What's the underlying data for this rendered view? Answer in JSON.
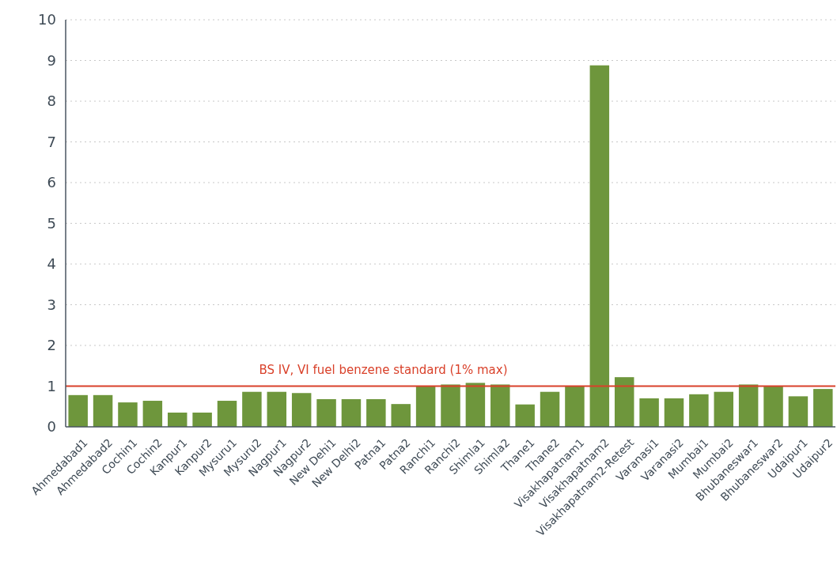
{
  "chart_data": {
    "type": "bar",
    "categories": [
      "Ahmedabad1",
      "Ahmedabad2",
      "Cochin1",
      "Cochin2",
      "Kanpur1",
      "Kanpur2",
      "Mysuru1",
      "Mysuru2",
      "Nagpur1",
      "Nagpur2",
      "New Dehi1",
      "New Delhi2",
      "Patna1",
      "Patna2",
      "Ranchi1",
      "Ranchi2",
      "Shimla1",
      "Shimla2",
      "Thane1",
      "Thane2",
      "Visakhapatnam1",
      "Visakhapatnam2",
      "Visakhapatnam2-Retest",
      "Varanasi1",
      "Varanasi2",
      "Mumbai1",
      "Mumbai2",
      "Bhubaneswar1",
      "Bhubaneswar2",
      "Udaipur1",
      "Udaipur2"
    ],
    "values": [
      0.78,
      0.78,
      0.6,
      0.64,
      0.35,
      0.35,
      0.64,
      0.86,
      0.86,
      0.83,
      0.68,
      0.68,
      0.68,
      0.56,
      1.0,
      1.04,
      1.08,
      1.04,
      0.55,
      0.86,
      1.0,
      8.88,
      1.22,
      0.7,
      0.7,
      0.8,
      0.86,
      1.04,
      1.0,
      0.75,
      0.93
    ],
    "color": "#6e963c",
    "ylim": [
      0,
      10
    ],
    "yticks": [
      0,
      1,
      2,
      3,
      4,
      5,
      6,
      7,
      8,
      9,
      10
    ],
    "grid": "y",
    "ref_lines": [
      {
        "axis": "y",
        "value": 1,
        "label": "BS IV, VI fuel benzene standard (1% max)",
        "color": "#d9412a"
      }
    ]
  }
}
